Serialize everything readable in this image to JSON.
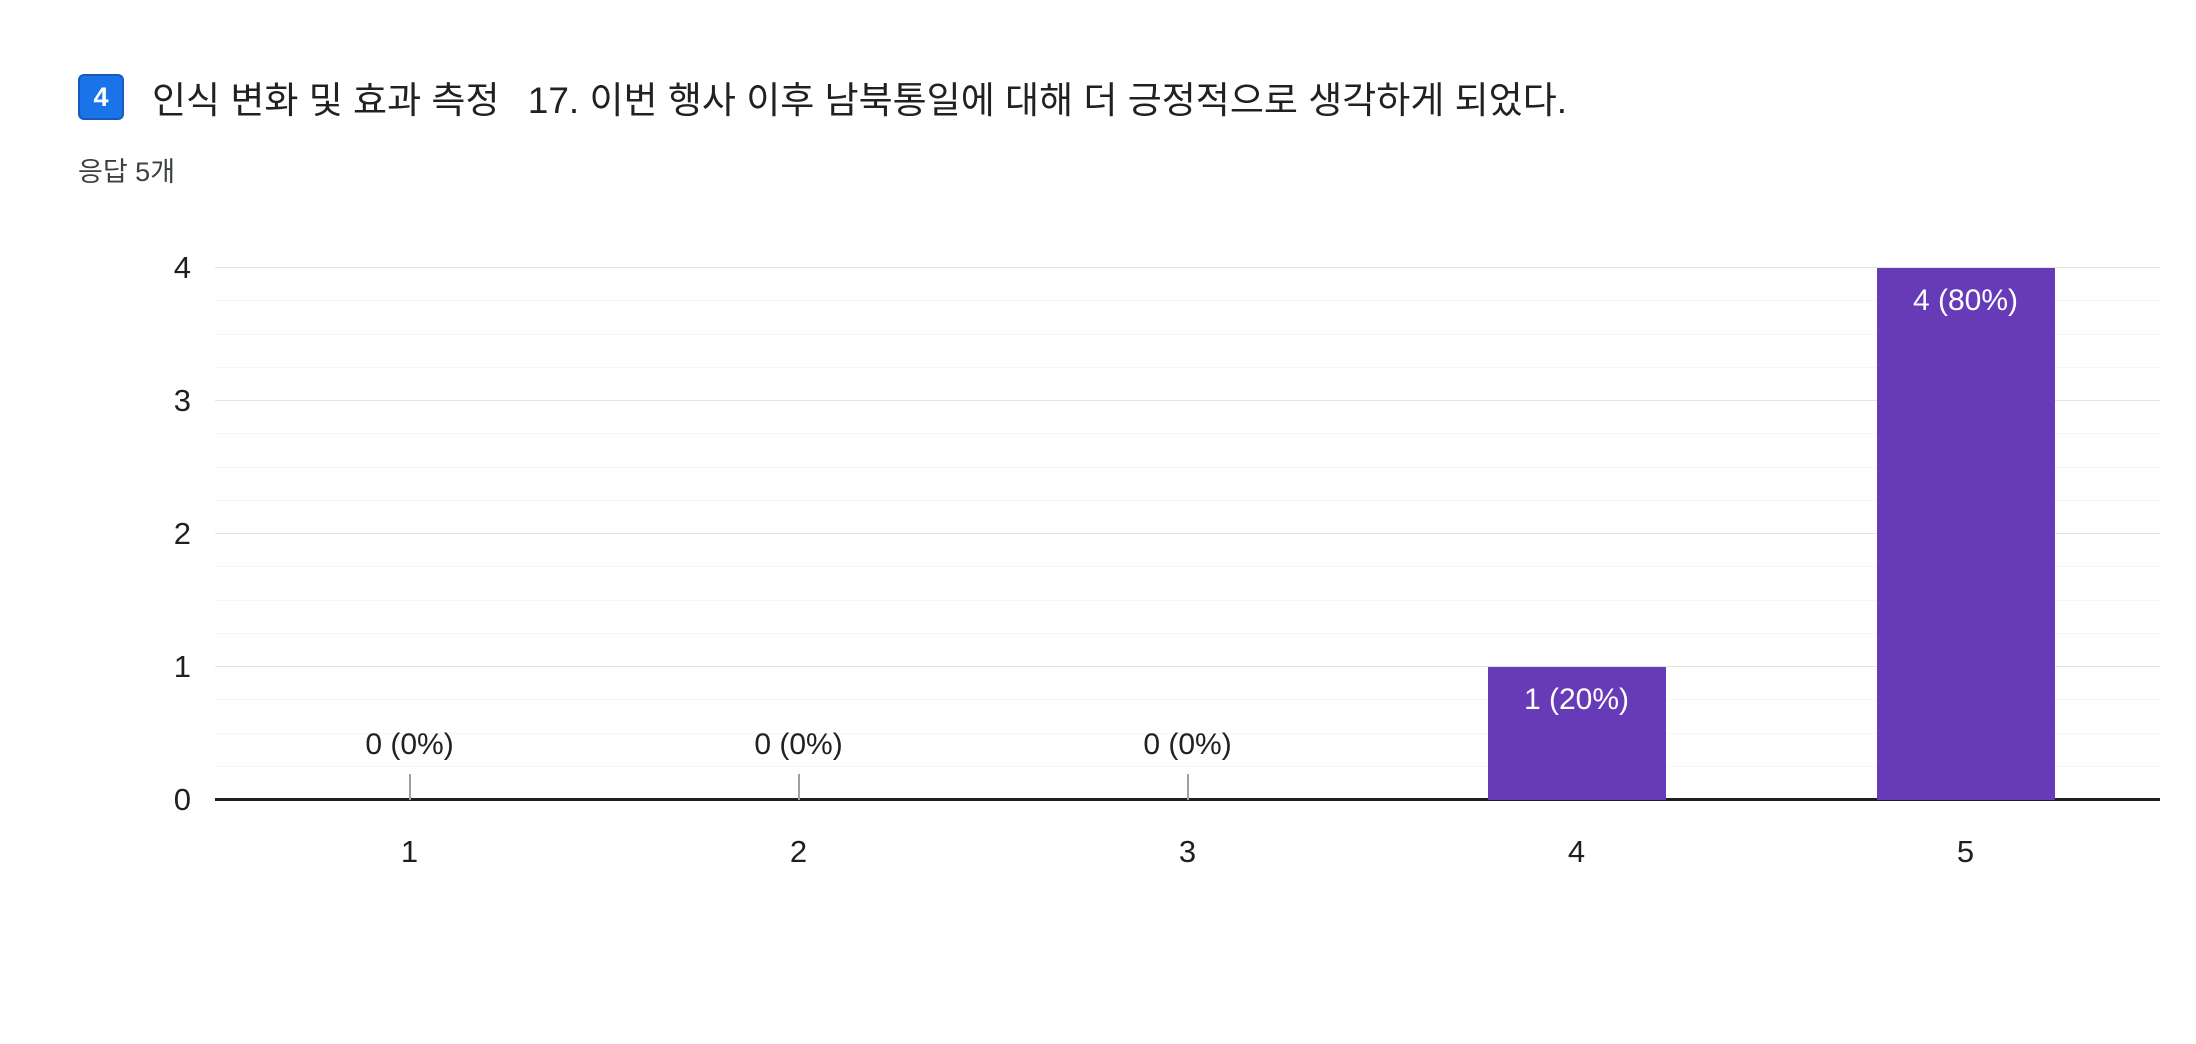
{
  "header": {
    "badge": "4",
    "section_title": "인식 변화 및 효과 측정",
    "question_title": "17. 이번 행사 이후 남북통일에 대해 더 긍정적으로 생각하게 되었다.",
    "responses_label": "응답 5개"
  },
  "colors": {
    "badge_bg": "#1a73e8",
    "badge_border": "#185abc",
    "bar": "#673ab7",
    "axis": "#1f1f1f",
    "grid_major": "#e3e3e3",
    "grid_minor": "#f6f6f6",
    "zero_tick": "#9aa0a6"
  },
  "chart_data": {
    "type": "bar",
    "title": "",
    "xlabel": "",
    "ylabel": "",
    "categories": [
      "1",
      "2",
      "3",
      "4",
      "5"
    ],
    "values": [
      0,
      0,
      0,
      1,
      4
    ],
    "value_labels": [
      "0 (0%)",
      "0 (0%)",
      "0 (0%)",
      "1 (20%)",
      "4 (80%)"
    ],
    "ylim": [
      0,
      4
    ],
    "yticks": [
      0,
      1,
      2,
      3,
      4
    ],
    "bar_color": "#673ab7",
    "grid": true,
    "legend": "none"
  }
}
